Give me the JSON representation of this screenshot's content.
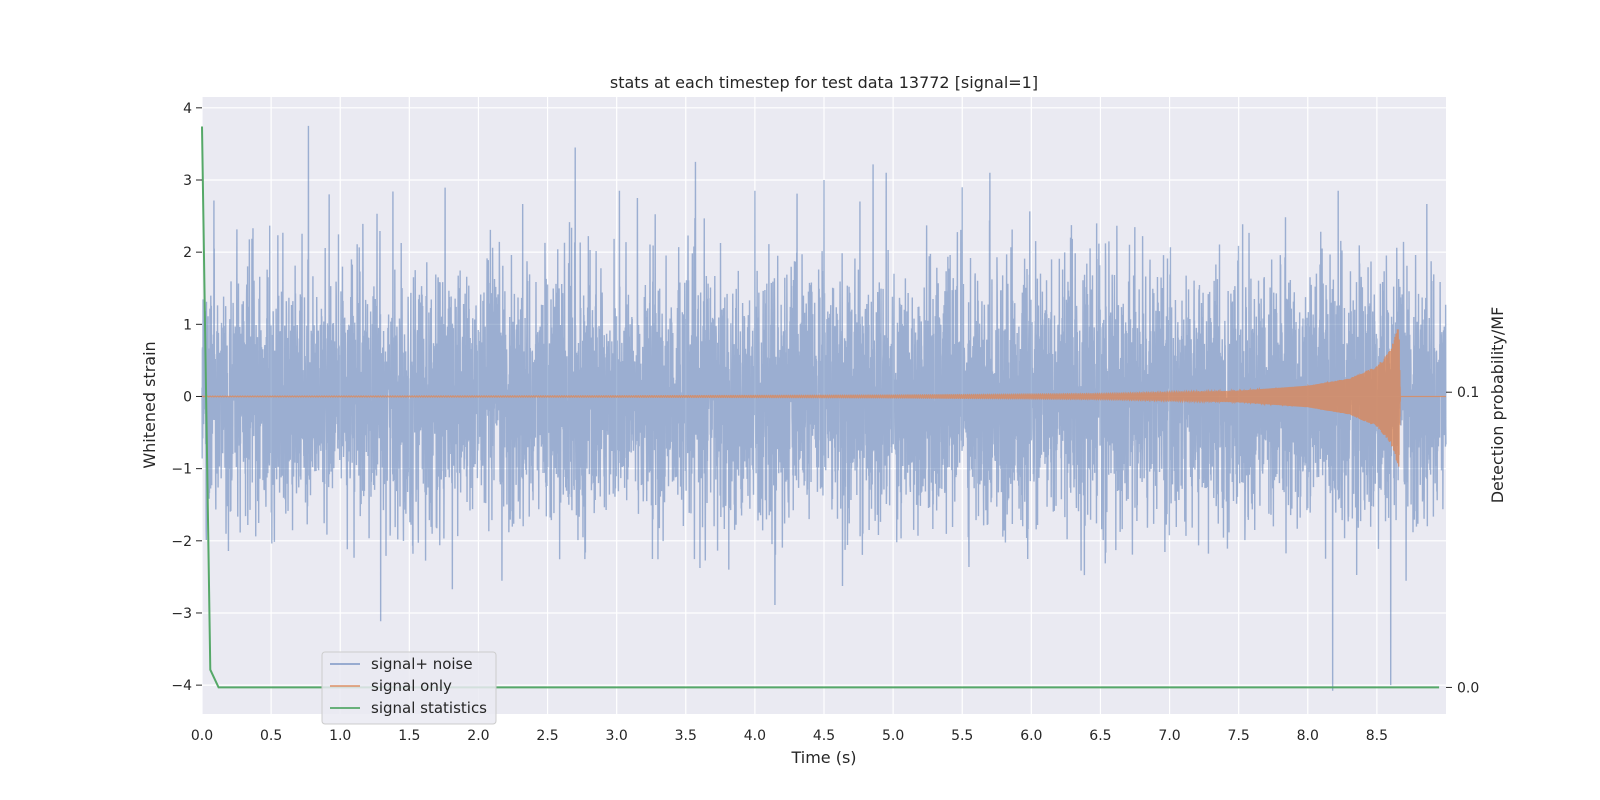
{
  "chart_data": {
    "type": "line",
    "title": "stats at each timestep for test data 13772 [signal=1]",
    "xlabel": "Time (s)",
    "ylabel": "Whitened strain",
    "y2label": "Detection probability/MF",
    "xlim": [
      0.0,
      9.0
    ],
    "ylim": [
      -4.4,
      4.15
    ],
    "y2lim": [
      -0.009,
      0.2
    ],
    "xticks": [
      "0.0",
      "0.5",
      "1.0",
      "1.5",
      "2.0",
      "2.5",
      "3.0",
      "3.5",
      "4.0",
      "4.5",
      "5.0",
      "5.5",
      "6.0",
      "6.5",
      "7.0",
      "7.5",
      "8.0",
      "8.5"
    ],
    "xtick_values": [
      0.0,
      0.5,
      1.0,
      1.5,
      2.0,
      2.5,
      3.0,
      3.5,
      4.0,
      4.5,
      5.0,
      5.5,
      6.0,
      6.5,
      7.0,
      7.5,
      8.0,
      8.5
    ],
    "yticks": [
      "4",
      "3",
      "2",
      "1",
      "0",
      "−1",
      "−2",
      "−3",
      "−4"
    ],
    "ytick_values": [
      4,
      3,
      2,
      1,
      0,
      -1,
      -2,
      -3,
      -4
    ],
    "y2ticks": [
      "0.1",
      "0.0"
    ],
    "y2tick_values": [
      0.1,
      0.0
    ],
    "grid": true,
    "legend_position": "lower-left",
    "series": [
      {
        "name": "signal+ noise",
        "color": "#4c72b0",
        "kind": "noise",
        "sample_rate": 800,
        "sigma": 0.85,
        "x_end": 9.0,
        "peaks_x": [
          0.77,
          0.92,
          2.7,
          3.02,
          3.15,
          4.0,
          4.5,
          4.95,
          5.5,
          5.7,
          8.6,
          8.22
        ],
        "peaks_y": [
          3.75,
          2.8,
          3.45,
          2.85,
          2.75,
          2.85,
          3.0,
          3.1,
          2.9,
          3.1,
          -4.0,
          2.85
        ]
      },
      {
        "name": "signal only",
        "color": "#dd8452",
        "kind": "chirp",
        "x": [
          0.0,
          3.0,
          5.0,
          6.5,
          7.5,
          8.0,
          8.3,
          8.5,
          8.6,
          8.66,
          8.67
        ],
        "amplitude": [
          0.005,
          0.01,
          0.02,
          0.04,
          0.08,
          0.15,
          0.25,
          0.42,
          0.65,
          1.0,
          0.0
        ]
      },
      {
        "name": "signal statistics",
        "color": "#55a868",
        "kind": "line",
        "axis": "y2",
        "x": [
          0.0,
          0.06,
          0.12,
          0.5,
          1.0,
          2.0,
          3.0,
          4.0,
          5.0,
          6.0,
          7.0,
          8.0,
          8.5,
          8.95
        ],
        "y": [
          0.19,
          0.006,
          0.0,
          0.0,
          0.0,
          0.0,
          0.0,
          0.0,
          0.0,
          0.0,
          0.0,
          0.0,
          0.0,
          0.0
        ]
      }
    ]
  }
}
